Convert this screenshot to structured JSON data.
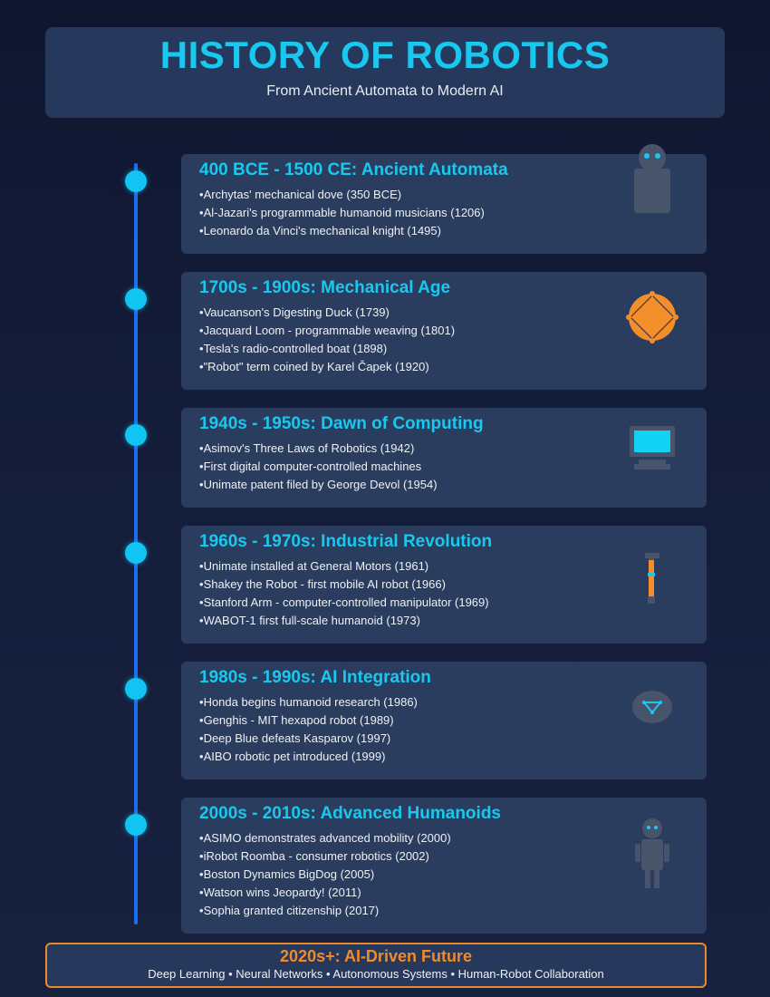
{
  "header": {
    "title": "HISTORY OF ROBOTICS",
    "subtitle": "From Ancient Automata to Modern AI"
  },
  "eras": [
    {
      "title": "400 BCE - 1500 CE: Ancient Automata",
      "icon": "robot-head-icon",
      "items": [
        "Archytas' mechanical dove (350 BCE)",
        "Al-Jazari's programmable humanoid musicians (1206)",
        "Leonardo da Vinci's mechanical knight (1495)"
      ]
    },
    {
      "title": "1700s - 1900s: Mechanical Age",
      "icon": "gear-icon",
      "items": [
        "Vaucanson's Digesting Duck (1739)",
        "Jacquard Loom - programmable weaving (1801)",
        "Tesla's radio-controlled boat (1898)",
        "\"Robot\" term coined by Karel Čapek (1920)"
      ]
    },
    {
      "title": "1940s - 1950s: Dawn of Computing",
      "icon": "computer-monitor-icon",
      "items": [
        "Asimov's Three Laws of Robotics (1942)",
        "First digital computer-controlled machines",
        "Unimate patent filed by George Devol (1954)"
      ]
    },
    {
      "title": "1960s - 1970s: Industrial Revolution",
      "icon": "robot-arm-icon",
      "items": [
        "Unimate installed at General Motors (1961)",
        "Shakey the Robot - first mobile AI robot (1966)",
        "Stanford Arm - computer-controlled manipulator (1969)",
        "WABOT-1 first full-scale humanoid (1973)"
      ]
    },
    {
      "title": "1980s - 1990s: AI Integration",
      "icon": "neural-network-icon",
      "items": [
        "Honda begins humanoid research (1986)",
        "Genghis - MIT hexapod robot (1989)",
        "Deep Blue defeats Kasparov (1997)",
        "AIBO robotic pet introduced (1999)"
      ]
    },
    {
      "title": "2000s - 2010s: Advanced Humanoids",
      "icon": "humanoid-robot-icon",
      "items": [
        "ASIMO demonstrates advanced mobility (2000)",
        "iRobot Roomba - consumer robotics (2002)",
        "Boston Dynamics BigDog (2005)",
        "Watson wins Jeopardy! (2011)",
        "Sophia granted citizenship (2017)"
      ]
    }
  ],
  "footer": {
    "title": "2020s+: AI-Driven Future",
    "subtitle": "Deep Learning • Neural Networks • Autonomous Systems • Human-Robot Collaboration"
  },
  "colors": {
    "accent": "#19c8ef",
    "timeline": "#1a6df5",
    "future": "#f08a2c",
    "card": "#2a3d5e"
  }
}
